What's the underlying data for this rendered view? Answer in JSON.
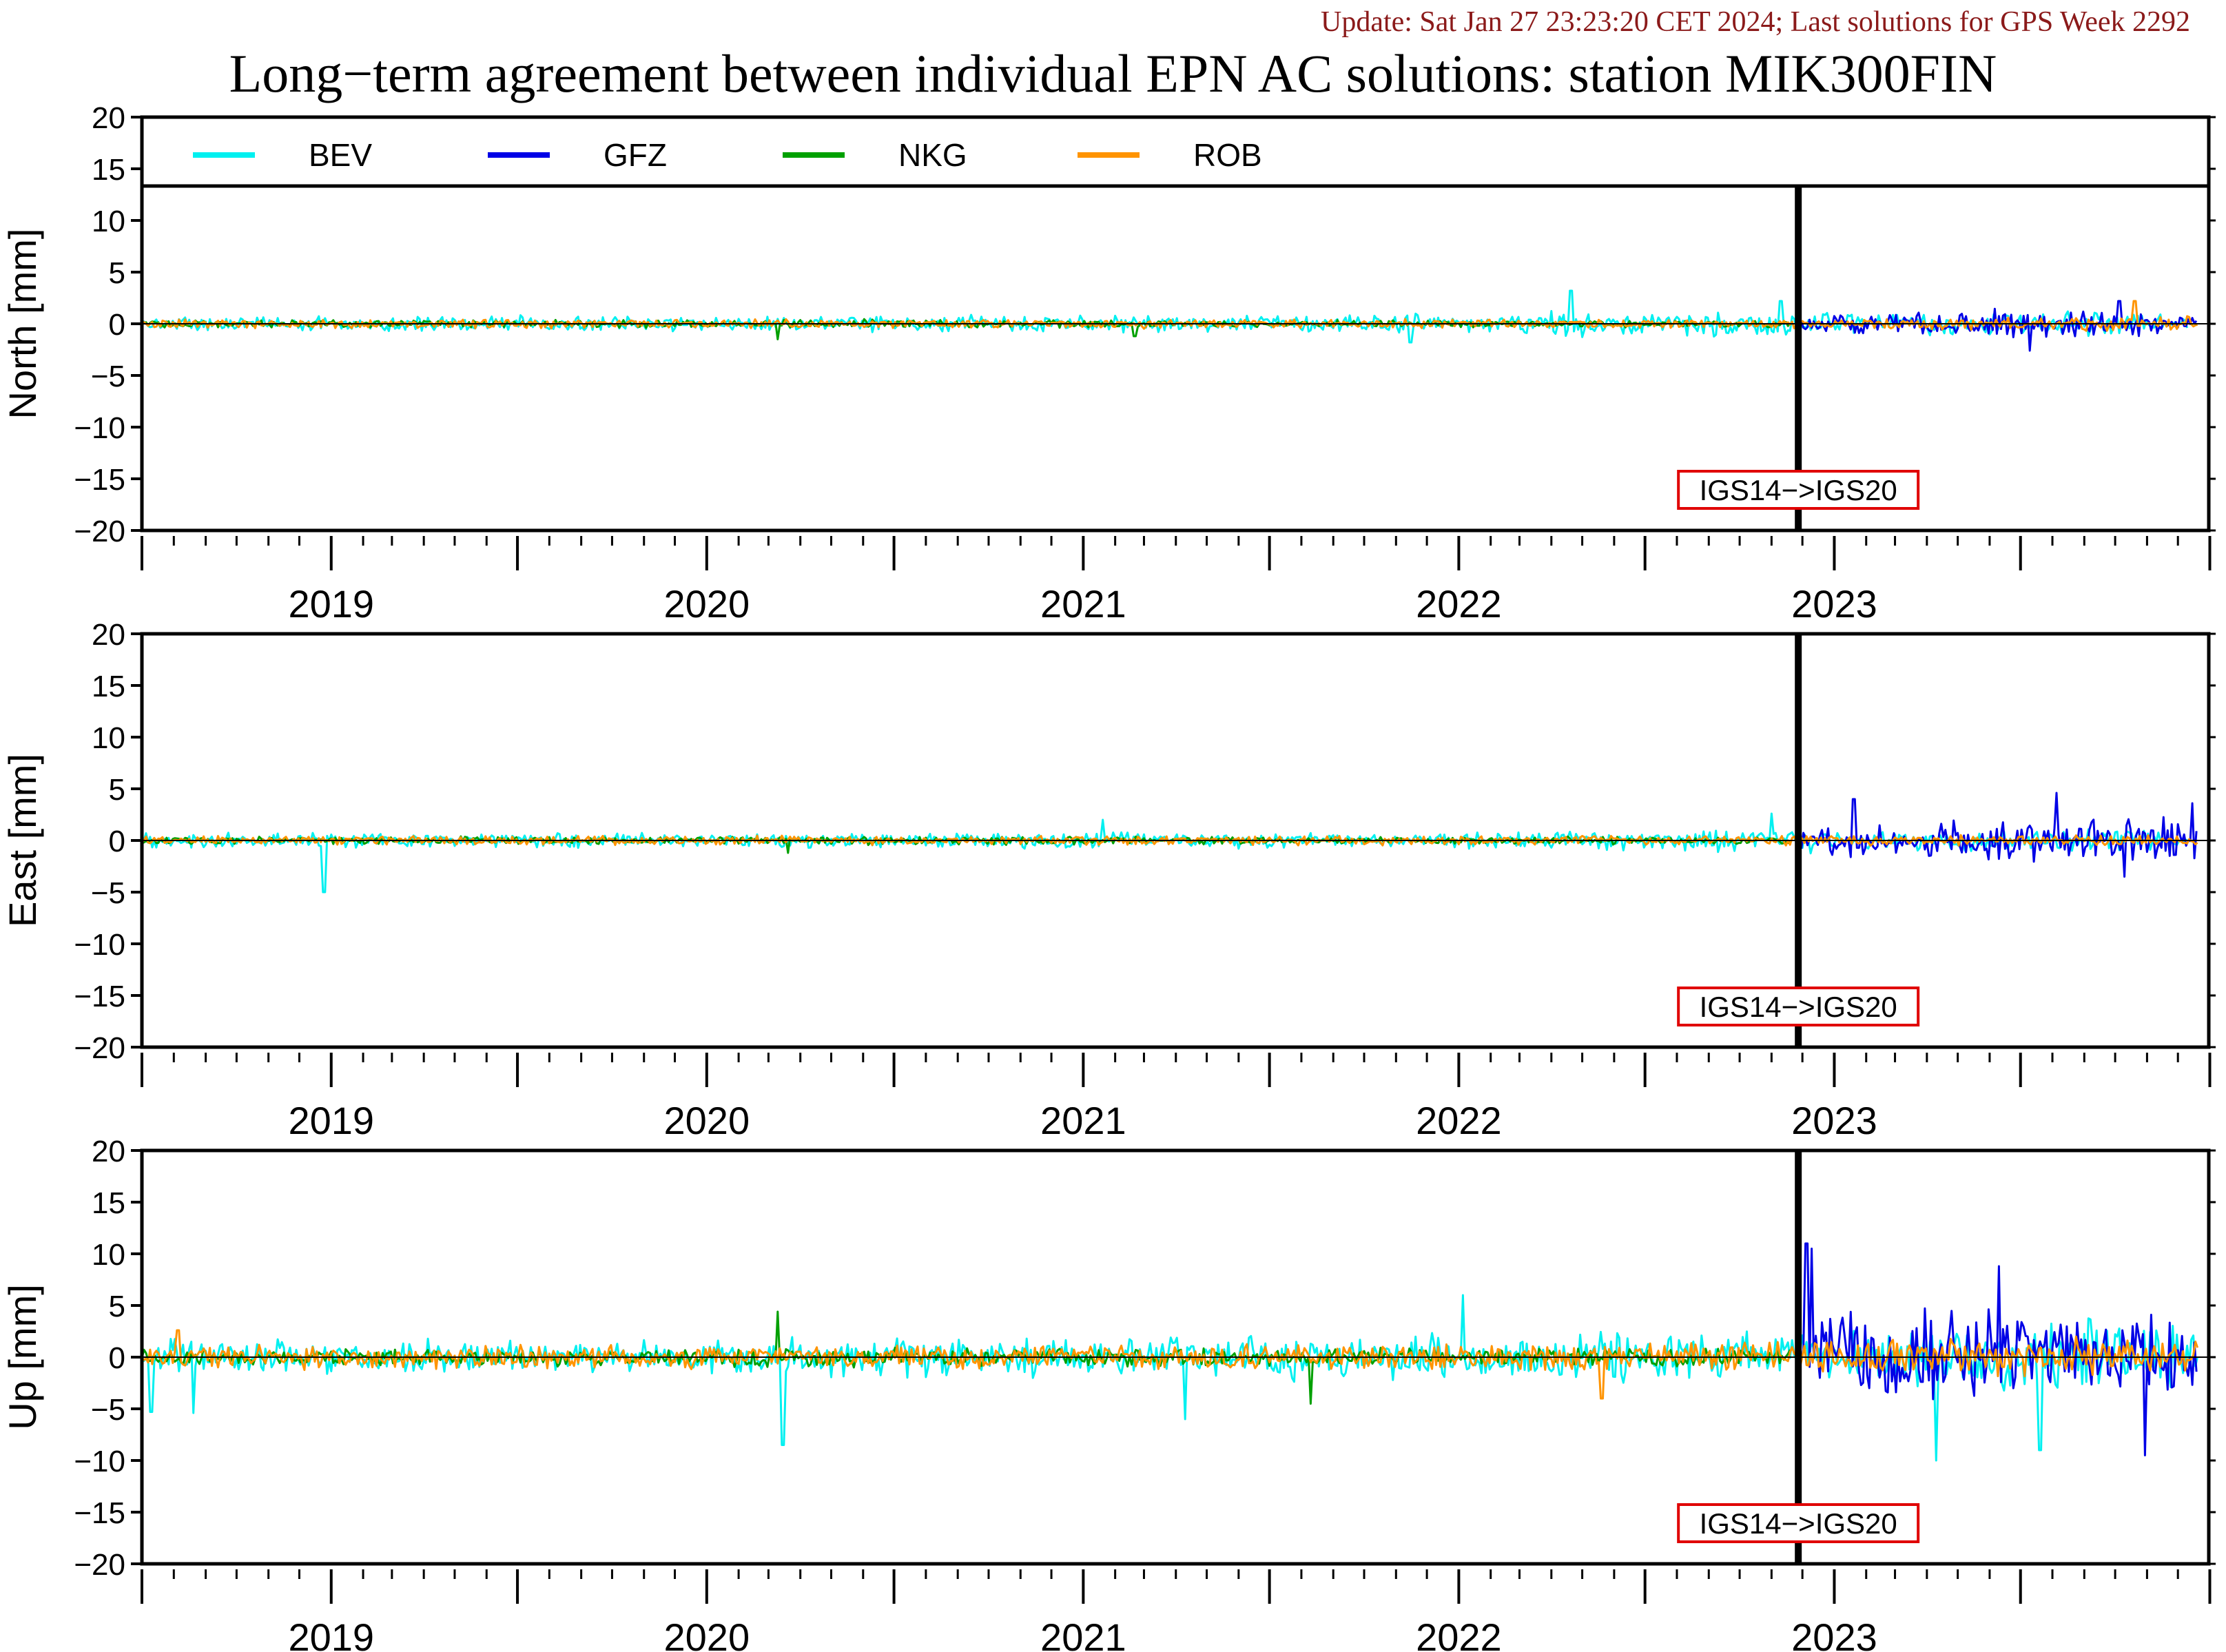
{
  "header": {
    "update_note": "Update: Sat Jan 27 23:23:20 CET 2024; Last solutions for GPS Week 2292",
    "title": "Long−term agreement between individual EPN AC solutions: station MIK300FIN"
  },
  "colors": {
    "BEV": "#00f0f0",
    "GFZ": "#0000e6",
    "NKG": "#00a000",
    "ROB": "#ff9400",
    "marker_box": "#e00000",
    "axis": "#000000"
  },
  "chart_data": {
    "type": "line",
    "legend": {
      "placement": "top-inside-first-panel",
      "entries": [
        "BEV",
        "GFZ",
        "NKG",
        "ROB"
      ]
    },
    "x_axis": {
      "range": [
        "2018-07-01",
        "2023-12-31"
      ],
      "year_labels": [
        "2019",
        "2020",
        "2021",
        "2022",
        "2023"
      ],
      "minor_ticks": "monthly"
    },
    "reference_frame_change": {
      "date": "2022-11-27",
      "label": "IGS14−>IGS20"
    },
    "panels": [
      {
        "ylabel": "North [mm]",
        "ylim": [
          -20,
          20
        ],
        "yticks": [
          "20",
          "15",
          "10",
          "5",
          "0",
          "−5",
          "−10",
          "−15",
          "−20"
        ],
        "series": [
          {
            "name": "BEV",
            "dates": [
              "2018-07-01",
              "2019-01-01",
              "2019-07-01",
              "2020-01-01",
              "2020-07-01",
              "2021-01-01",
              "2021-07-01",
              "2022-01-01",
              "2022-04-01",
              "2022-07-01",
              "2022-11-20",
              "2023-02-01",
              "2023-05-01",
              "2023-08-01",
              "2023-12-10"
            ],
            "spread": [
              0.8,
              0.8,
              0.9,
              0.8,
              1.0,
              0.9,
              0.9,
              1.1,
              1.6,
              1.3,
              1.6,
              1.0,
              1.4,
              1.4,
              1.0
            ],
            "spikes": [
              [
                "2021-11-15",
                -1.8
              ],
              [
                "2022-04-20",
                3.2
              ],
              [
                "2022-11-10",
                2.2
              ]
            ]
          },
          {
            "name": "GFZ",
            "dates": [
              "2022-11-30",
              "2023-03-01",
              "2023-06-01",
              "2023-09-01",
              "2023-12-20"
            ],
            "spread": [
              1.0,
              1.1,
              1.5,
              1.6,
              1.2
            ],
            "spikes": [
              [
                "2023-07-10",
                -2.6
              ],
              [
                "2023-10-05",
                2.2
              ]
            ]
          },
          {
            "name": "NKG",
            "dates": [
              "2018-07-01",
              "2019-07-01",
              "2020-07-01",
              "2021-07-01",
              "2022-07-01",
              "2022-11-20"
            ],
            "spread": [
              0.4,
              0.4,
              0.5,
              0.4,
              0.4,
              0.4
            ],
            "spikes": [
              [
                "2020-03-10",
                -1.5
              ],
              [
                "2021-02-20",
                -1.2
              ]
            ]
          },
          {
            "name": "ROB",
            "dates": [
              "2018-07-01",
              "2019-07-01",
              "2020-07-01",
              "2021-07-01",
              "2022-07-01",
              "2023-06-01",
              "2023-12-20"
            ],
            "spread": [
              0.5,
              0.5,
              0.5,
              0.5,
              0.5,
              0.7,
              0.8
            ],
            "spikes": [
              [
                "2023-10-20",
                2.2
              ]
            ]
          }
        ]
      },
      {
        "ylabel": "East [mm]",
        "ylim": [
          -20,
          20
        ],
        "yticks": [
          "20",
          "15",
          "10",
          "5",
          "0",
          "−5",
          "−10",
          "−15",
          "−20"
        ],
        "series": [
          {
            "name": "BEV",
            "dates": [
              "2018-07-01",
              "2019-01-01",
              "2019-07-01",
              "2020-01-01",
              "2020-07-01",
              "2021-01-01",
              "2021-07-01",
              "2022-01-01",
              "2022-07-01",
              "2022-11-20",
              "2023-03-01",
              "2023-08-01",
              "2023-12-10"
            ],
            "spread": [
              0.9,
              0.8,
              0.8,
              0.8,
              0.8,
              0.9,
              0.8,
              0.9,
              1.2,
              1.5,
              1.0,
              1.2,
              1.0
            ],
            "spikes": [
              [
                "2018-12-25",
                -5.0
              ],
              [
                "2021-01-20",
                2.0
              ],
              [
                "2022-11-01",
                2.6
              ]
            ]
          },
          {
            "name": "GFZ",
            "dates": [
              "2022-11-30",
              "2023-01-15",
              "2023-03-01",
              "2023-06-01",
              "2023-09-01",
              "2023-12-20"
            ],
            "spread": [
              1.4,
              2.0,
              2.0,
              2.3,
              2.4,
              2.6
            ],
            "spikes": [
              [
                "2023-01-20",
                4.0
              ],
              [
                "2023-08-05",
                4.6
              ],
              [
                "2023-10-10",
                -3.5
              ],
              [
                "2023-12-15",
                3.6
              ]
            ]
          },
          {
            "name": "NKG",
            "dates": [
              "2018-07-01",
              "2019-07-01",
              "2020-07-01",
              "2021-07-01",
              "2022-07-01",
              "2022-11-20"
            ],
            "spread": [
              0.4,
              0.4,
              0.5,
              0.4,
              0.4,
              0.4
            ],
            "spikes": [
              [
                "2020-03-20",
                -1.2
              ]
            ]
          },
          {
            "name": "ROB",
            "dates": [
              "2018-07-01",
              "2019-07-01",
              "2020-07-01",
              "2021-07-01",
              "2022-07-01",
              "2023-06-01",
              "2023-12-20"
            ],
            "spread": [
              0.5,
              0.5,
              0.5,
              0.5,
              0.5,
              0.6,
              0.6
            ],
            "spikes": []
          }
        ]
      },
      {
        "ylabel": "Up [mm]",
        "ylim": [
          -20,
          20
        ],
        "yticks": [
          "20",
          "15",
          "10",
          "5",
          "0",
          "−5",
          "−10",
          "−15",
          "−20"
        ],
        "series": [
          {
            "name": "BEV",
            "dates": [
              "2018-07-01",
              "2019-01-01",
              "2019-07-01",
              "2020-01-01",
              "2020-07-01",
              "2021-01-01",
              "2021-07-01",
              "2022-01-01",
              "2022-07-01",
              "2022-11-20",
              "2023-03-01",
              "2023-06-01",
              "2023-09-01",
              "2023-12-20"
            ],
            "spread": [
              2.0,
              1.8,
              1.8,
              1.9,
              2.2,
              2.4,
              2.4,
              2.6,
              2.6,
              2.6,
              3.5,
              4.0,
              4.0,
              3.5
            ],
            "spikes": [
              [
                "2018-07-10",
                -5.3
              ],
              [
                "2018-08-20",
                -5.4
              ],
              [
                "2020-03-15",
                -8.5
              ],
              [
                "2021-04-10",
                -6.0
              ],
              [
                "2022-01-05",
                6.0
              ],
              [
                "2023-04-10",
                -10.0
              ],
              [
                "2023-07-20",
                -9.0
              ]
            ]
          },
          {
            "name": "GFZ",
            "dates": [
              "2022-11-30",
              "2023-01-01",
              "2023-03-01",
              "2023-06-01",
              "2023-09-01",
              "2023-12-20"
            ],
            "spread": [
              5.0,
              5.0,
              5.3,
              5.5,
              5.5,
              5.0
            ],
            "spikes": [
              [
                "2022-12-05",
                11.0
              ],
              [
                "2022-12-10",
                10.5
              ],
              [
                "2023-06-10",
                8.8
              ],
              [
                "2023-10-30",
                -9.5
              ]
            ]
          },
          {
            "name": "NKG",
            "dates": [
              "2018-07-01",
              "2019-07-01",
              "2020-01-01",
              "2020-07-01",
              "2021-07-01",
              "2022-07-01",
              "2022-11-20"
            ],
            "spread": [
              0.9,
              0.9,
              1.0,
              1.1,
              1.0,
              1.0,
              1.0
            ],
            "spikes": [
              [
                "2020-03-10",
                4.4
              ],
              [
                "2021-08-10",
                -4.5
              ]
            ]
          },
          {
            "name": "ROB",
            "dates": [
              "2018-07-01",
              "2019-07-01",
              "2020-07-01",
              "2021-07-01",
              "2022-07-01",
              "2022-11-20",
              "2023-06-01",
              "2023-12-20"
            ],
            "spread": [
              1.3,
              1.3,
              1.3,
              1.4,
              1.5,
              1.8,
              2.3,
              2.0
            ],
            "spikes": [
              [
                "2022-05-20",
                -4.0
              ],
              [
                "2018-08-05",
                2.6
              ]
            ]
          }
        ]
      }
    ]
  }
}
